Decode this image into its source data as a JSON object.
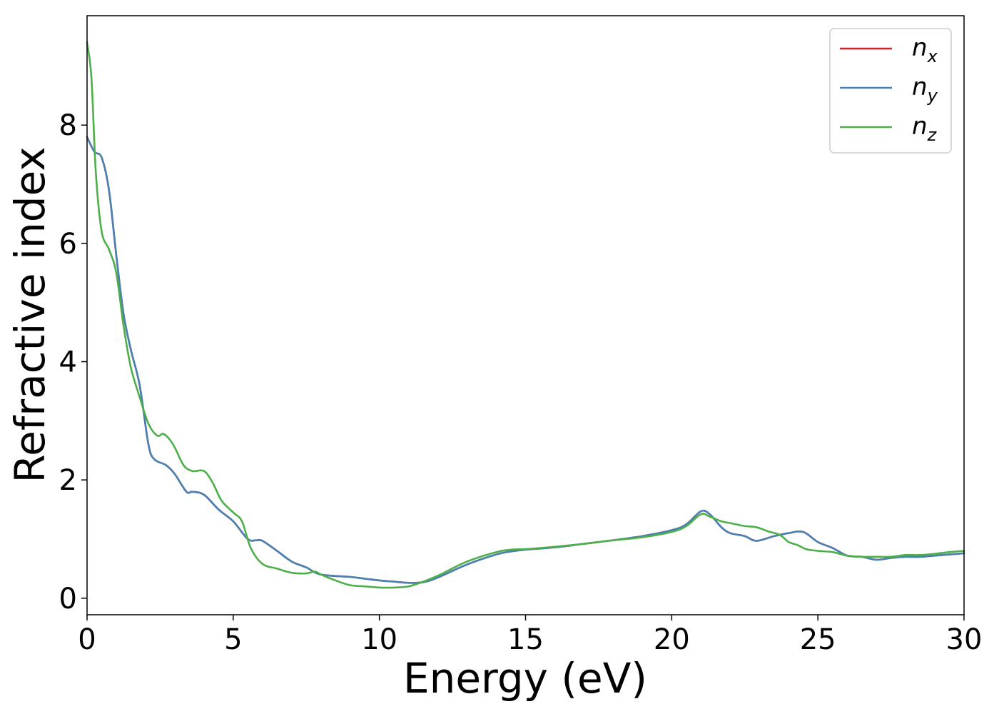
{
  "chart_data": {
    "type": "line",
    "xlabel": "Energy (eV)",
    "ylabel": "Refractive index",
    "xlim": [
      0,
      30
    ],
    "ylim": [
      -0.28,
      9.85
    ],
    "xticks": [
      0,
      5,
      10,
      15,
      20,
      25,
      30
    ],
    "yticks": [
      0,
      2,
      4,
      6,
      8
    ],
    "grid": false,
    "legend_position": "top-right",
    "series": [
      {
        "name": "n_x",
        "legend": {
          "base": "n",
          "sub": "x"
        },
        "color": "#e41a1c",
        "x": [
          0,
          0.25,
          0.5,
          0.75,
          1.0,
          1.25,
          1.5,
          1.8,
          2.1,
          2.3,
          2.7,
          3.0,
          3.4,
          3.6,
          4.0,
          4.5,
          5.0,
          5.5,
          5.8,
          6.0,
          6.5,
          7.0,
          7.5,
          8.0,
          9.0,
          9.5,
          10.0,
          10.5,
          11.0,
          11.5,
          12.0,
          13.0,
          14.0,
          14.5,
          15.0,
          16.0,
          17.0,
          18.0,
          19.0,
          20.0,
          20.5,
          21.0,
          21.3,
          21.7,
          22.0,
          22.5,
          22.9,
          23.5,
          24.0,
          24.5,
          25.0,
          25.5,
          26.0,
          26.5,
          27.0,
          27.5,
          28.0,
          28.5,
          29.0,
          29.5,
          30.0
        ],
        "y": [
          7.8,
          7.55,
          7.45,
          6.9,
          5.8,
          4.8,
          4.2,
          3.6,
          2.6,
          2.35,
          2.25,
          2.1,
          1.8,
          1.8,
          1.75,
          1.5,
          1.3,
          1.0,
          0.98,
          0.97,
          0.8,
          0.62,
          0.52,
          0.4,
          0.36,
          0.33,
          0.3,
          0.28,
          0.26,
          0.27,
          0.35,
          0.57,
          0.74,
          0.79,
          0.82,
          0.86,
          0.92,
          0.98,
          1.05,
          1.15,
          1.25,
          1.47,
          1.42,
          1.2,
          1.1,
          1.05,
          0.97,
          1.05,
          1.1,
          1.12,
          0.95,
          0.85,
          0.72,
          0.7,
          0.65,
          0.68,
          0.7,
          0.7,
          0.72,
          0.74,
          0.76
        ]
      },
      {
        "name": "n_y",
        "legend": {
          "base": "n",
          "sub": "y"
        },
        "color": "#4682b4",
        "x": [
          0,
          0.25,
          0.5,
          0.75,
          1.0,
          1.25,
          1.5,
          1.8,
          2.1,
          2.3,
          2.7,
          3.0,
          3.4,
          3.6,
          4.0,
          4.5,
          5.0,
          5.5,
          5.8,
          6.0,
          6.5,
          7.0,
          7.5,
          8.0,
          9.0,
          9.5,
          10.0,
          10.5,
          11.0,
          11.5,
          12.0,
          13.0,
          14.0,
          14.5,
          15.0,
          16.0,
          17.0,
          18.0,
          19.0,
          20.0,
          20.5,
          21.0,
          21.3,
          21.7,
          22.0,
          22.5,
          22.9,
          23.5,
          24.0,
          24.5,
          25.0,
          25.5,
          26.0,
          26.5,
          27.0,
          27.5,
          28.0,
          28.5,
          29.0,
          29.5,
          30.0
        ],
        "y": [
          7.8,
          7.55,
          7.45,
          6.9,
          5.8,
          4.8,
          4.2,
          3.6,
          2.6,
          2.35,
          2.25,
          2.1,
          1.8,
          1.8,
          1.75,
          1.5,
          1.3,
          1.0,
          0.98,
          0.97,
          0.8,
          0.62,
          0.52,
          0.4,
          0.36,
          0.33,
          0.3,
          0.28,
          0.26,
          0.27,
          0.35,
          0.57,
          0.74,
          0.79,
          0.82,
          0.86,
          0.92,
          0.98,
          1.05,
          1.15,
          1.25,
          1.47,
          1.42,
          1.2,
          1.1,
          1.05,
          0.97,
          1.05,
          1.1,
          1.12,
          0.95,
          0.85,
          0.72,
          0.7,
          0.65,
          0.68,
          0.7,
          0.7,
          0.72,
          0.74,
          0.76
        ]
      },
      {
        "name": "n_z",
        "legend": {
          "base": "n",
          "sub": "z"
        },
        "color": "#4daf4a",
        "x": [
          0,
          0.15,
          0.3,
          0.5,
          0.75,
          1.0,
          1.25,
          1.5,
          1.8,
          2.1,
          2.4,
          2.6,
          2.8,
          3.0,
          3.3,
          3.6,
          4.0,
          4.3,
          4.6,
          5.0,
          5.3,
          5.6,
          6.0,
          6.5,
          7.0,
          7.5,
          7.8,
          8.0,
          8.5,
          9.0,
          9.5,
          10.0,
          10.5,
          11.0,
          11.5,
          12.0,
          13.0,
          14.0,
          14.5,
          15.0,
          16.0,
          17.0,
          18.0,
          19.0,
          20.0,
          20.5,
          21.0,
          21.3,
          21.7,
          22.0,
          22.5,
          22.9,
          23.3,
          23.7,
          24.0,
          24.3,
          24.6,
          25.0,
          25.5,
          26.0,
          26.5,
          27.0,
          27.5,
          28.0,
          28.5,
          29.0,
          29.5,
          30.0
        ],
        "y": [
          9.4,
          8.8,
          7.2,
          6.2,
          5.9,
          5.5,
          4.6,
          3.9,
          3.4,
          2.95,
          2.75,
          2.78,
          2.7,
          2.55,
          2.25,
          2.15,
          2.15,
          1.95,
          1.65,
          1.45,
          1.3,
          0.85,
          0.58,
          0.5,
          0.43,
          0.42,
          0.45,
          0.4,
          0.3,
          0.22,
          0.2,
          0.18,
          0.18,
          0.2,
          0.28,
          0.38,
          0.62,
          0.78,
          0.82,
          0.83,
          0.87,
          0.92,
          0.98,
          1.03,
          1.12,
          1.22,
          1.42,
          1.38,
          1.3,
          1.27,
          1.22,
          1.2,
          1.13,
          1.07,
          0.95,
          0.9,
          0.83,
          0.8,
          0.78,
          0.72,
          0.7,
          0.7,
          0.7,
          0.73,
          0.73,
          0.75,
          0.78,
          0.8
        ]
      }
    ]
  }
}
